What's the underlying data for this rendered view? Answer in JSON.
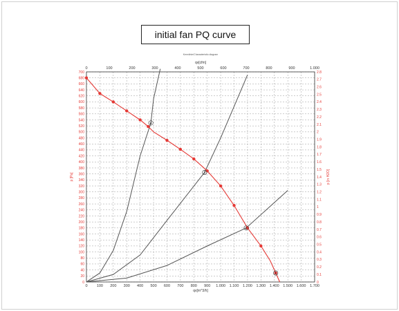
{
  "page": {
    "title": "initial fan PQ curve"
  },
  "chart_data": {
    "type": "line",
    "title": "initial fan PQ curve",
    "subtitle": "Kennlinie/Characteristic diagram",
    "top_axis_label": "qv[cfm]",
    "xlabel": "qv[m^3/h]",
    "ylabel_left": "p [Pa]",
    "ylabel_right": "p [in H2O]",
    "xlim": [
      0,
      1700
    ],
    "ylim": [
      0,
      700
    ],
    "top_xlim": [
      0,
      1000
    ],
    "right_ylim": [
      0,
      2.8
    ],
    "x_ticks": [
      "0",
      "100",
      "200",
      "300",
      "400",
      "500",
      "600",
      "700",
      "800",
      "900",
      "1.000",
      "1.100",
      "1.200",
      "1.300",
      "1.400",
      "1.500",
      "1.600",
      "1.700"
    ],
    "y_ticks": [
      "0",
      "20",
      "40",
      "60",
      "80",
      "100",
      "120",
      "140",
      "160",
      "180",
      "200",
      "220",
      "240",
      "260",
      "280",
      "300",
      "320",
      "340",
      "360",
      "380",
      "400",
      "420",
      "440",
      "460",
      "480",
      "500",
      "520",
      "540",
      "560",
      "580",
      "600",
      "620",
      "640",
      "660",
      "680",
      "700"
    ],
    "top_ticks": [
      "0",
      "100",
      "200",
      "300",
      "400",
      "500",
      "600",
      "700",
      "800",
      "900",
      "1.000"
    ],
    "right_ticks": [
      "0",
      "0.1",
      "0.2",
      "0.3",
      "0.4",
      "0.5",
      "0.6",
      "0.7",
      "0.8",
      "0.9",
      "1",
      "1.1",
      "1.2",
      "1.3",
      "1.4",
      "1.5",
      "1.6",
      "1.7",
      "1.8",
      "1.9",
      "2",
      "2.1",
      "2.2",
      "2.3",
      "2.4",
      "2.5",
      "2.6",
      "2.7",
      "2.8"
    ],
    "grid": true,
    "colors": {
      "fan": "#e53935",
      "system": "#555555",
      "axis": "#333333"
    },
    "fan_curve": {
      "x": [
        0,
        100,
        200,
        300,
        400,
        460,
        500,
        600,
        700,
        800,
        900,
        1000,
        1100,
        1200,
        1300,
        1370,
        1410,
        1430,
        1440
      ],
      "y": [
        680,
        628,
        600,
        570,
        540,
        518,
        500,
        472,
        442,
        410,
        370,
        320,
        255,
        180,
        120,
        70,
        30,
        10,
        0
      ],
      "markers_x": [
        0,
        100,
        200,
        300,
        400,
        460,
        600,
        700,
        800,
        900,
        1000,
        1100,
        1200,
        1300,
        1410
      ],
      "markers_y": [
        680,
        628,
        600,
        570,
        540,
        518,
        472,
        442,
        410,
        370,
        320,
        255,
        180,
        120,
        30
      ]
    },
    "system_curves": [
      {
        "x": [
          0,
          100,
          200,
          300,
          400,
          480,
          500,
          550
        ],
        "y": [
          0,
          30,
          105,
          235,
          420,
          530,
          610,
          710
        ]
      },
      {
        "x": [
          0,
          200,
          400,
          600,
          880,
          1000,
          1200
        ],
        "y": [
          0,
          25,
          90,
          205,
          365,
          480,
          690
        ]
      },
      {
        "x": [
          0,
          300,
          600,
          900,
          1190,
          1500
        ],
        "y": [
          0,
          13,
          55,
          120,
          180,
          305
        ]
      }
    ],
    "intersection_labels": [
      {
        "x": 480,
        "y": 530,
        "label": "4"
      },
      {
        "x": 880,
        "y": 365,
        "label": "3"
      },
      {
        "x": 1190,
        "y": 180,
        "label": "2"
      },
      {
        "x": 1410,
        "y": 30,
        "label": "1"
      }
    ]
  }
}
